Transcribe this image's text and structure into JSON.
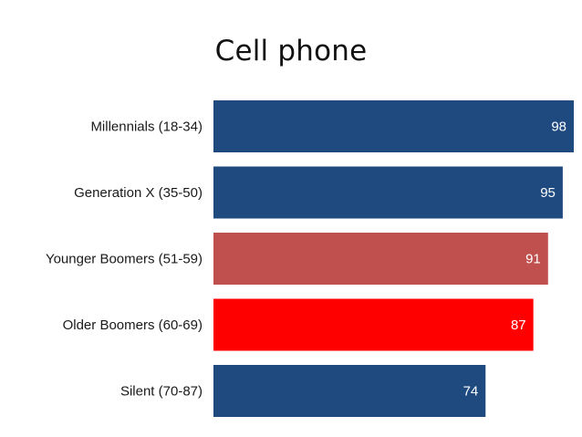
{
  "chart_data": {
    "type": "bar",
    "orientation": "horizontal",
    "title": "Cell phone",
    "categories": [
      "Millennials (18-34)",
      "Generation X (35-50)",
      "Younger Boomers (51-59)",
      "Older Boomers (60-69)",
      "Silent (70-87)"
    ],
    "values": [
      98,
      95,
      91,
      87,
      74
    ],
    "data_labels": [
      "98",
      "95",
      "91",
      "87",
      "74"
    ],
    "bar_colors": [
      "#1f4a7f",
      "#1f4a7f",
      "#c0504d",
      "#ff0000",
      "#1f4a7f"
    ],
    "label_color": "#ffffff",
    "xlim": [
      0,
      98
    ],
    "grid": false,
    "legend": "none"
  }
}
